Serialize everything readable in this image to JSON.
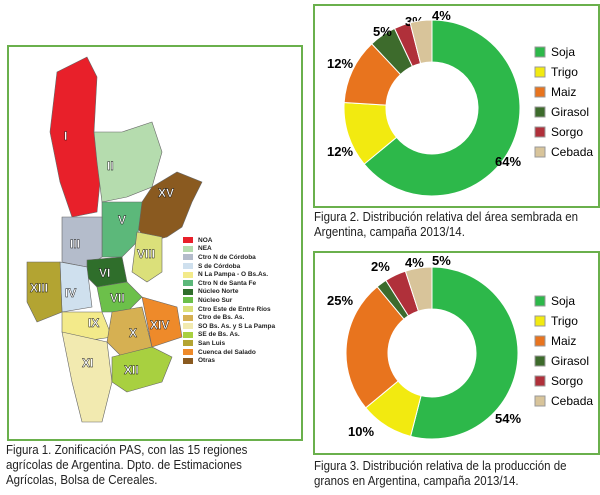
{
  "figure1": {
    "caption": "Figura 1. Zonificación PAS, con las 15 regiones agrícolas de Argentina. Dpto. de Estimaciones Agrícolas, Bolsa de Cereales.",
    "regions": [
      "I",
      "II",
      "III",
      "IV",
      "V",
      "VI",
      "VII",
      "VIII",
      "IX",
      "X",
      "XI",
      "XII",
      "XIII",
      "XIV",
      "XV"
    ],
    "legend": [
      {
        "label": "NOA",
        "color": "#e8202a"
      },
      {
        "label": "NEA",
        "color": "#b5dcae"
      },
      {
        "label": "Ctro N de Córdoba",
        "color": "#b4bccb"
      },
      {
        "label": "S de Córdoba",
        "color": "#cfe0ee"
      },
      {
        "label": "N La Pampa - O  Bs.As.",
        "color": "#f3ea8a"
      },
      {
        "label": "Ctro N de Santa Fe",
        "color": "#5cb87a"
      },
      {
        "label": "Núcleo Norte",
        "color": "#2f6e2b"
      },
      {
        "label": "Núcleo Sur",
        "color": "#6cc04a"
      },
      {
        "label": "Ctro Este de Entre Ríos",
        "color": "#dbe07a"
      },
      {
        "label": "Ctro de Bs. As.",
        "color": "#d6b052"
      },
      {
        "label": "SO Bs. As. y S La Pampa",
        "color": "#f2eab0"
      },
      {
        "label": "SE de Bs. As.",
        "color": "#a8d040"
      },
      {
        "label": "San Luis",
        "color": "#b3a432"
      },
      {
        "label": "Cuenca del Salado",
        "color": "#ee8a2a"
      },
      {
        "label": "Otras",
        "color": "#8a5a20"
      }
    ]
  },
  "chart_data": [
    {
      "type": "pie",
      "donut": true,
      "caption": "Figura 2. Distribución relativa del área sembrada en Argentina, campaña 2013/14.",
      "categories": [
        "Soja",
        "Trigo",
        "Maiz",
        "Girasol",
        "Sorgo",
        "Cebada"
      ],
      "values": [
        64,
        12,
        12,
        5,
        3,
        4
      ],
      "labels": [
        "64%",
        "12%",
        "12%",
        "5%",
        "3%",
        "4%"
      ],
      "legend": "right"
    },
    {
      "type": "pie",
      "donut": true,
      "caption": "Figura 3. Distribución relativa de la producción de granos en Argentina, campaña 2013/14.",
      "categories": [
        "Soja",
        "Trigo",
        "Maiz",
        "Girasol",
        "Sorgo",
        "Cebada"
      ],
      "values": [
        54,
        10,
        25,
        2,
        4,
        5
      ],
      "labels": [
        "54%",
        "10%",
        "25%",
        "2%",
        "4%",
        "5%"
      ],
      "legend": "right"
    }
  ],
  "colors": [
    "#2db84a",
    "#f2ea10",
    "#e8741e",
    "#3d6b2c",
    "#b0303a",
    "#d8c49a"
  ]
}
